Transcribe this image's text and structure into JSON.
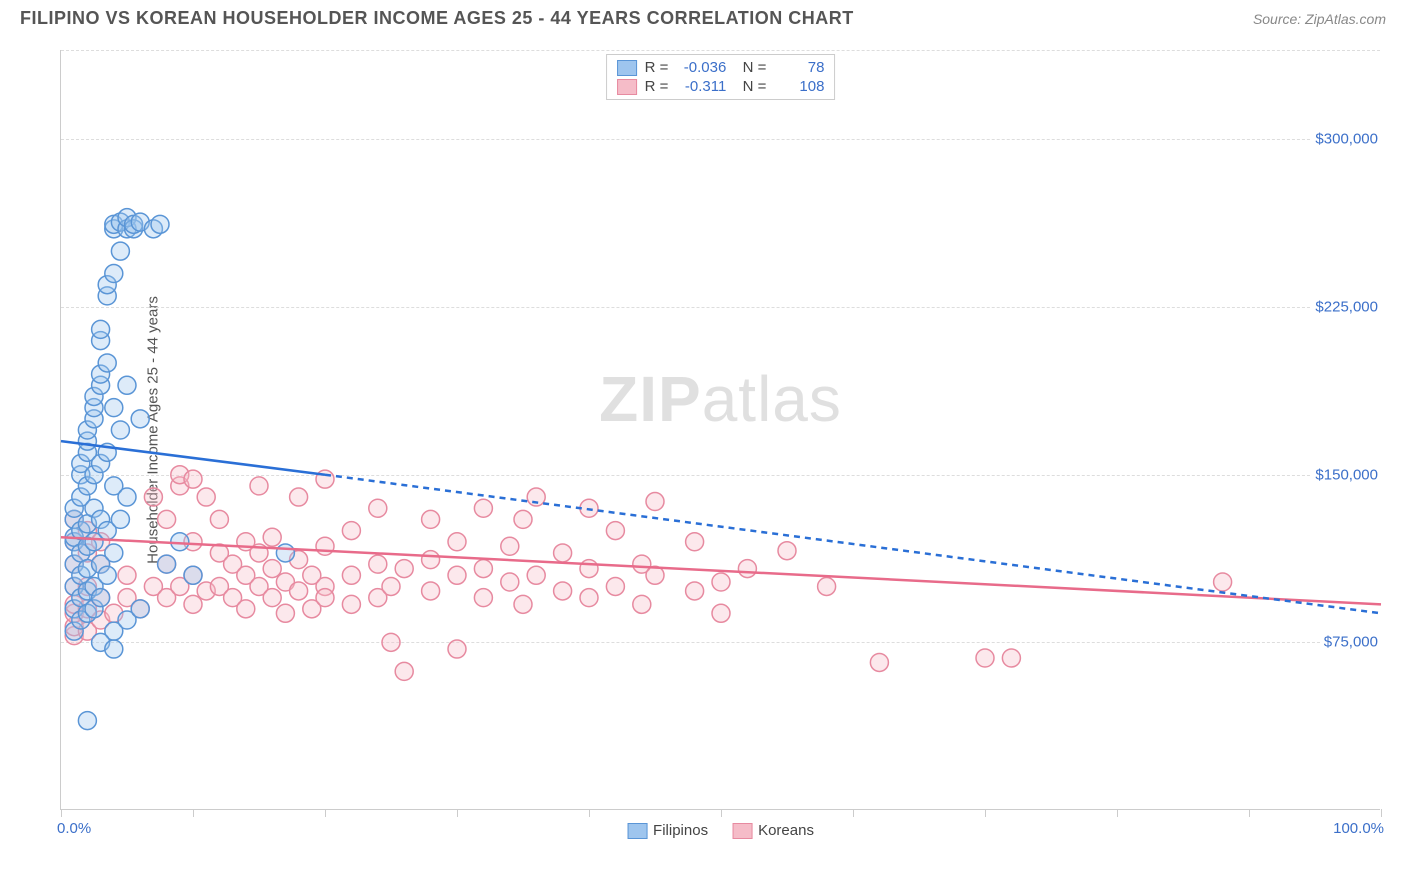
{
  "title": "FILIPINO VS KOREAN HOUSEHOLDER INCOME AGES 25 - 44 YEARS CORRELATION CHART",
  "source_label": "Source: ZipAtlas.com",
  "ylabel": "Householder Income Ages 25 - 44 years",
  "watermark_bold": "ZIP",
  "watermark_rest": "atlas",
  "chart": {
    "type": "scatter",
    "xlim": [
      0,
      100
    ],
    "ylim": [
      0,
      340000
    ],
    "x_axis_label_left": "0.0%",
    "x_axis_label_right": "100.0%",
    "y_gridlines": [
      75000,
      150000,
      225000,
      300000
    ],
    "y_tick_labels": [
      "$75,000",
      "$150,000",
      "$225,000",
      "$300,000"
    ],
    "x_ticks": [
      0,
      10,
      20,
      30,
      40,
      50,
      60,
      70,
      80,
      90,
      100
    ],
    "background_color": "#ffffff",
    "grid_color": "#dddddd",
    "axis_color": "#cccccc",
    "tick_label_color": "#3b6fc9",
    "marker_radius": 9,
    "marker_stroke_width": 1.5,
    "marker_fill_opacity": 0.35,
    "trend_line_width": 2.5,
    "extrapolation_dash": "6,5"
  },
  "series": {
    "filipinos": {
      "label": "Filipinos",
      "color_fill": "#9ec5ee",
      "color_stroke": "#5a95d6",
      "line_color": "#2a6fd6",
      "R": "-0.036",
      "N": "78",
      "trend": {
        "x1": 0,
        "y1": 165000,
        "x2": 20,
        "y2": 150000
      },
      "extrap": {
        "x1": 20,
        "y1": 150000,
        "x2": 100,
        "y2": 88000
      },
      "points": [
        [
          1,
          80000
        ],
        [
          1,
          90000
        ],
        [
          1,
          100000
        ],
        [
          1,
          110000
        ],
        [
          1,
          120000
        ],
        [
          1,
          122000
        ],
        [
          1,
          130000
        ],
        [
          1,
          135000
        ],
        [
          1.5,
          85000
        ],
        [
          1.5,
          95000
        ],
        [
          1.5,
          105000
        ],
        [
          1.5,
          115000
        ],
        [
          1.5,
          125000
        ],
        [
          1.5,
          140000
        ],
        [
          1.5,
          150000
        ],
        [
          1.5,
          155000
        ],
        [
          2,
          88000
        ],
        [
          2,
          98000
        ],
        [
          2,
          108000
        ],
        [
          2,
          118000
        ],
        [
          2,
          128000
        ],
        [
          2,
          145000
        ],
        [
          2,
          160000
        ],
        [
          2,
          165000
        ],
        [
          2,
          170000
        ],
        [
          2.5,
          90000
        ],
        [
          2.5,
          100000
        ],
        [
          2.5,
          120000
        ],
        [
          2.5,
          135000
        ],
        [
          2.5,
          150000
        ],
        [
          2.5,
          175000
        ],
        [
          2.5,
          180000
        ],
        [
          2.5,
          185000
        ],
        [
          3,
          95000
        ],
        [
          3,
          110000
        ],
        [
          3,
          130000
        ],
        [
          3,
          155000
        ],
        [
          3,
          190000
        ],
        [
          3,
          195000
        ],
        [
          3,
          210000
        ],
        [
          3,
          215000
        ],
        [
          3.5,
          105000
        ],
        [
          3.5,
          125000
        ],
        [
          3.5,
          160000
        ],
        [
          3.5,
          200000
        ],
        [
          3.5,
          230000
        ],
        [
          3.5,
          235000
        ],
        [
          4,
          115000
        ],
        [
          4,
          145000
        ],
        [
          4,
          180000
        ],
        [
          4,
          240000
        ],
        [
          4,
          260000
        ],
        [
          4,
          262000
        ],
        [
          4.5,
          130000
        ],
        [
          4.5,
          170000
        ],
        [
          4.5,
          250000
        ],
        [
          4.5,
          263000
        ],
        [
          5,
          140000
        ],
        [
          5,
          190000
        ],
        [
          5,
          260000
        ],
        [
          5,
          265000
        ],
        [
          5.5,
          260000
        ],
        [
          5.5,
          262000
        ],
        [
          6,
          175000
        ],
        [
          6,
          263000
        ],
        [
          7,
          260000
        ],
        [
          7.5,
          262000
        ],
        [
          2,
          40000
        ],
        [
          4,
          80000
        ],
        [
          5,
          85000
        ],
        [
          6,
          90000
        ],
        [
          8,
          110000
        ],
        [
          9,
          120000
        ],
        [
          10,
          105000
        ],
        [
          3,
          75000
        ],
        [
          4,
          72000
        ],
        [
          17,
          115000
        ]
      ]
    },
    "koreans": {
      "label": "Koreans",
      "color_fill": "#f5bcc8",
      "color_stroke": "#e78aa0",
      "line_color": "#e86b8a",
      "R": "-0.311",
      "N": "108",
      "trend": {
        "x1": 0,
        "y1": 122000,
        "x2": 100,
        "y2": 92000
      },
      "points": [
        [
          1,
          78000
        ],
        [
          1,
          82000
        ],
        [
          1,
          88000
        ],
        [
          1,
          92000
        ],
        [
          1,
          100000
        ],
        [
          1,
          110000
        ],
        [
          1,
          120000
        ],
        [
          1,
          130000
        ],
        [
          2,
          80000
        ],
        [
          2,
          90000
        ],
        [
          2,
          100000
        ],
        [
          2,
          115000
        ],
        [
          2,
          125000
        ],
        [
          3,
          85000
        ],
        [
          3,
          95000
        ],
        [
          3,
          110000
        ],
        [
          3,
          120000
        ],
        [
          4,
          88000
        ],
        [
          5,
          95000
        ],
        [
          5,
          105000
        ],
        [
          6,
          90000
        ],
        [
          7,
          100000
        ],
        [
          7,
          140000
        ],
        [
          8,
          95000
        ],
        [
          8,
          110000
        ],
        [
          8,
          130000
        ],
        [
          9,
          100000
        ],
        [
          9,
          145000
        ],
        [
          9,
          150000
        ],
        [
          10,
          92000
        ],
        [
          10,
          105000
        ],
        [
          10,
          120000
        ],
        [
          10,
          148000
        ],
        [
          11,
          98000
        ],
        [
          11,
          140000
        ],
        [
          12,
          100000
        ],
        [
          12,
          115000
        ],
        [
          12,
          130000
        ],
        [
          13,
          95000
        ],
        [
          13,
          110000
        ],
        [
          14,
          105000
        ],
        [
          14,
          120000
        ],
        [
          14,
          90000
        ],
        [
          15,
          100000
        ],
        [
          15,
          115000
        ],
        [
          15,
          145000
        ],
        [
          16,
          95000
        ],
        [
          16,
          108000
        ],
        [
          16,
          122000
        ],
        [
          17,
          102000
        ],
        [
          17,
          88000
        ],
        [
          18,
          98000
        ],
        [
          18,
          112000
        ],
        [
          18,
          140000
        ],
        [
          19,
          105000
        ],
        [
          19,
          90000
        ],
        [
          20,
          100000
        ],
        [
          20,
          118000
        ],
        [
          20,
          148000
        ],
        [
          20,
          95000
        ],
        [
          22,
          105000
        ],
        [
          22,
          92000
        ],
        [
          22,
          125000
        ],
        [
          24,
          110000
        ],
        [
          24,
          95000
        ],
        [
          24,
          135000
        ],
        [
          25,
          100000
        ],
        [
          25,
          75000
        ],
        [
          26,
          108000
        ],
        [
          26,
          62000
        ],
        [
          28,
          112000
        ],
        [
          28,
          98000
        ],
        [
          28,
          130000
        ],
        [
          30,
          105000
        ],
        [
          30,
          72000
        ],
        [
          30,
          120000
        ],
        [
          32,
          108000
        ],
        [
          32,
          95000
        ],
        [
          32,
          135000
        ],
        [
          34,
          102000
        ],
        [
          34,
          118000
        ],
        [
          35,
          92000
        ],
        [
          35,
          130000
        ],
        [
          36,
          105000
        ],
        [
          36,
          140000
        ],
        [
          38,
          98000
        ],
        [
          38,
          115000
        ],
        [
          40,
          108000
        ],
        [
          40,
          95000
        ],
        [
          40,
          135000
        ],
        [
          42,
          100000
        ],
        [
          42,
          125000
        ],
        [
          44,
          110000
        ],
        [
          44,
          92000
        ],
        [
          45,
          105000
        ],
        [
          45,
          138000
        ],
        [
          48,
          98000
        ],
        [
          48,
          120000
        ],
        [
          50,
          102000
        ],
        [
          50,
          88000
        ],
        [
          52,
          108000
        ],
        [
          55,
          116000
        ],
        [
          58,
          100000
        ],
        [
          62,
          66000
        ],
        [
          70,
          68000
        ],
        [
          72,
          68000
        ],
        [
          88,
          102000
        ]
      ]
    }
  },
  "bottom_legend": {
    "item1": "Filipinos",
    "item2": "Koreans"
  }
}
